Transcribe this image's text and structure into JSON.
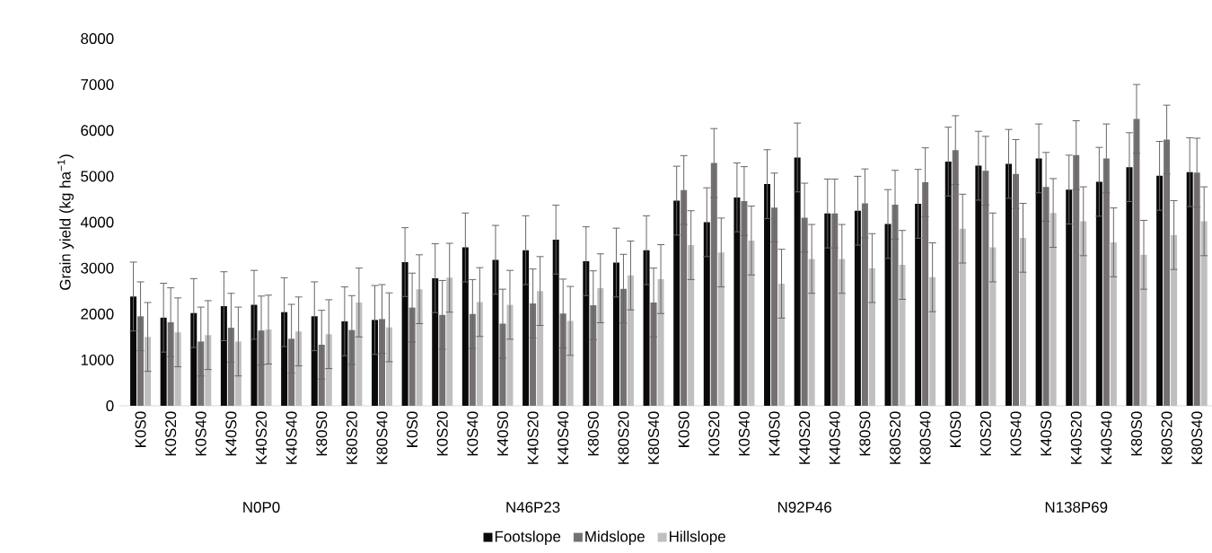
{
  "chart_data": {
    "type": "bar",
    "ylabel": "Grain yield (kg ha$^{−1}$)",
    "categories": [
      "K0S0",
      "K0S20",
      "K0S40",
      "K40S0",
      "K40S20",
      "K40S40",
      "K80S0",
      "K80S20",
      "K80S40",
      "K0S0",
      "K0S20",
      "K0S40",
      "K40S0",
      "K40S20",
      "K40S40",
      "K80S0",
      "K80S20",
      "K80S40",
      "K0S0",
      "K0S20",
      "K0S40",
      "K40S0",
      "K40S20",
      "K40S40",
      "K80S0",
      "K80S20",
      "K80S40",
      "K0S0",
      "K0S20",
      "K0S40",
      "K40S0",
      "K40S20",
      "K40S40",
      "K80S0",
      "K80S20",
      "K80S40"
    ],
    "series": [
      {
        "name": "Footslope",
        "color": "#0a0a0a",
        "values": [
          2380,
          1920,
          2020,
          2170,
          2200,
          2040,
          1950,
          1840,
          1870,
          3130,
          2780,
          3450,
          3180,
          3390,
          3620,
          3150,
          3120,
          3390,
          4470,
          4000,
          4540,
          4830,
          5410,
          4190,
          4250,
          3960,
          4400,
          5320,
          5230,
          5270,
          5390,
          4710,
          4880,
          5200,
          5010,
          5090
        ],
        "errors": [
          750,
          750,
          750,
          750,
          750,
          750,
          750,
          750,
          750,
          750,
          750,
          750,
          750,
          750,
          750,
          750,
          750,
          750,
          750,
          750,
          750,
          750,
          750,
          750,
          750,
          750,
          750,
          750,
          750,
          750,
          750,
          750,
          750,
          750,
          750,
          750
        ]
      },
      {
        "name": "Midslope",
        "color": "#767171",
        "values": [
          1950,
          1820,
          1400,
          1700,
          1640,
          1460,
          1330,
          1650,
          1890,
          2140,
          1980,
          2000,
          1790,
          2230,
          2010,
          2190,
          2550,
          2250,
          4700,
          5290,
          4460,
          4320,
          4100,
          4190,
          4410,
          4380,
          4870,
          5570,
          5120,
          5050,
          4770,
          5460,
          5390,
          6250,
          5800,
          5080
        ],
        "errors": [
          750,
          750,
          750,
          750,
          750,
          750,
          750,
          750,
          750,
          750,
          750,
          750,
          750,
          750,
          750,
          750,
          750,
          750,
          750,
          750,
          750,
          750,
          750,
          750,
          750,
          750,
          750,
          750,
          750,
          750,
          750,
          750,
          750,
          750,
          750,
          750
        ]
      },
      {
        "name": "Hillslope",
        "color": "#bfbfbf",
        "values": [
          1500,
          1600,
          1540,
          1400,
          1660,
          1620,
          1560,
          2250,
          1710,
          2540,
          2790,
          2260,
          2200,
          2500,
          1850,
          2560,
          2840,
          2760,
          3500,
          3340,
          3600,
          2660,
          3200,
          3200,
          3000,
          3070,
          2800,
          3860,
          3450,
          3660,
          4200,
          4020,
          3560,
          3290,
          3720,
          4020
        ],
        "errors": [
          750,
          750,
          750,
          750,
          750,
          750,
          750,
          750,
          750,
          750,
          750,
          750,
          750,
          750,
          750,
          750,
          750,
          750,
          750,
          750,
          750,
          750,
          750,
          750,
          750,
          750,
          750,
          750,
          750,
          750,
          750,
          750,
          750,
          750,
          750,
          750
        ]
      }
    ],
    "ylim": [
      0,
      8000
    ],
    "yticks": [
      0,
      1000,
      2000,
      3000,
      4000,
      5000,
      6000,
      7000,
      8000
    ],
    "annotations": [
      "N0P0",
      "N46P23",
      "N92P46",
      "N138P69"
    ],
    "legend": "bottom"
  }
}
